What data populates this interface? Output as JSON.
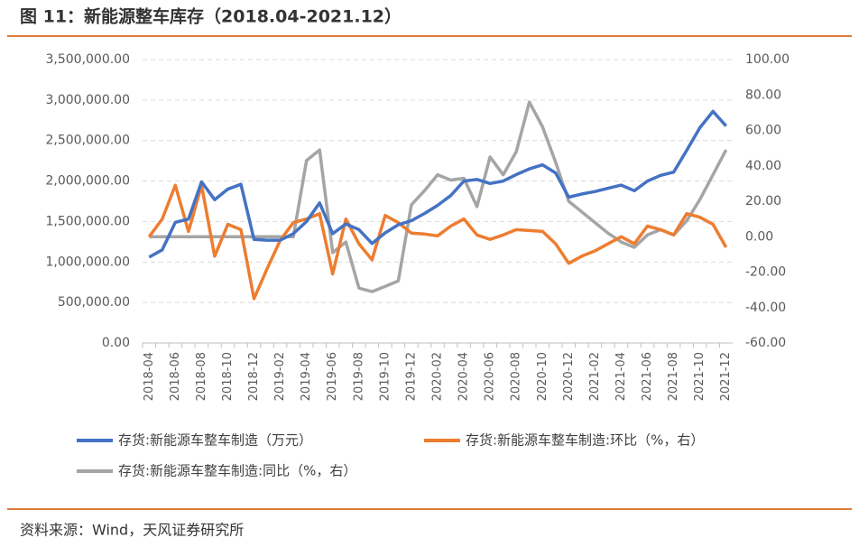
{
  "chart_data": {
    "type": "line",
    "title": "图 11：新能源整车库存（2018.04-2021.12）",
    "source": "资料来源：Wind，天风证券研究所",
    "categories": [
      "2018-04",
      null,
      "2018-06",
      null,
      "2018-08",
      null,
      "2018-10",
      null,
      "2018-12",
      null,
      "2019-02",
      null,
      "2019-04",
      null,
      "2019-06",
      null,
      "2019-08",
      null,
      "2019-10",
      null,
      "2019-12",
      null,
      "2020-02",
      null,
      "2020-04",
      null,
      "2020-06",
      null,
      "2020-08",
      null,
      "2020-10",
      null,
      "2020-12",
      null,
      "2021-02",
      null,
      "2021-04",
      null,
      "2021-06",
      null,
      "2021-08",
      null,
      "2021-10",
      null,
      "2021-12"
    ],
    "series": [
      {
        "name": "存货:新能源车整车制造（万元）",
        "color": "#4472c4",
        "values": [
          1060000,
          1150000,
          1490000,
          1530000,
          1990000,
          1770000,
          1900000,
          1960000,
          1280000,
          1270000,
          1270000,
          1350000,
          1500000,
          1730000,
          1350000,
          1470000,
          1400000,
          1230000,
          1360000,
          1460000,
          1510000,
          1600000,
          1700000,
          1820000,
          2000000,
          2020000,
          1970000,
          2000000,
          2080000,
          2150000,
          2200000,
          2100000,
          1800000,
          1840000,
          1870000,
          1910000,
          1950000,
          1880000,
          2000000,
          2070000,
          2110000,
          2380000,
          2660000,
          2860000,
          2680000
        ]
      },
      {
        "name": "存货:新能源车整车制造:环比（%，右）",
        "color": "#ed7d31",
        "axis": "y2",
        "values": [
          0,
          10,
          29,
          3,
          29,
          -11,
          7,
          4,
          -35,
          -18,
          -2,
          8,
          10,
          13,
          -21,
          10,
          -4,
          -13,
          12,
          8,
          2,
          1.5,
          0.5,
          6,
          10,
          1,
          -1.5,
          1,
          4,
          3.5,
          3,
          -4,
          -15,
          -11,
          -8,
          -4,
          0,
          -4,
          6,
          4,
          1,
          13,
          11,
          7,
          -6
        ]
      },
      {
        "name": "存货:新能源车整车制造:同比（%，右）",
        "color": "#a5a5a5",
        "axis": "y2",
        "values": [
          0,
          0,
          0,
          0,
          0,
          0,
          0,
          0,
          0,
          0,
          0,
          0,
          43,
          49,
          -9,
          -3,
          -29,
          -31,
          -28,
          -25,
          18,
          26,
          35,
          32,
          33,
          17,
          45,
          35,
          48,
          76,
          62,
          42,
          20,
          14,
          8,
          2,
          -3,
          -6,
          1,
          4,
          1,
          9,
          21,
          35,
          49
        ]
      }
    ],
    "ylim": [
      0,
      3500000
    ],
    "yticks": [
      {
        "value": 0,
        "label": "0.00"
      },
      {
        "value": 500000,
        "label": "500,000.00"
      },
      {
        "value": 1000000,
        "label": "1,000,000.00"
      },
      {
        "value": 1500000,
        "label": "1,500,000.00"
      },
      {
        "value": 2000000,
        "label": "2,000,000.00"
      },
      {
        "value": 2500000,
        "label": "2,500,000.00"
      },
      {
        "value": 3000000,
        "label": "3,000,000.00"
      },
      {
        "value": 3500000,
        "label": "3,500,000.00"
      }
    ],
    "y2lim": [
      -60,
      100
    ],
    "y2ticks": [
      {
        "value": -60,
        "label": "-60.00"
      },
      {
        "value": -40,
        "label": "-40.00"
      },
      {
        "value": -20,
        "label": "-20.00"
      },
      {
        "value": 0,
        "label": "0.00"
      },
      {
        "value": 20,
        "label": "20.00"
      },
      {
        "value": 40,
        "label": "40.00"
      },
      {
        "value": 60,
        "label": "60.00"
      },
      {
        "value": 80,
        "label": "80.00"
      },
      {
        "value": 100,
        "label": "100.00"
      }
    ],
    "grid": true
  }
}
